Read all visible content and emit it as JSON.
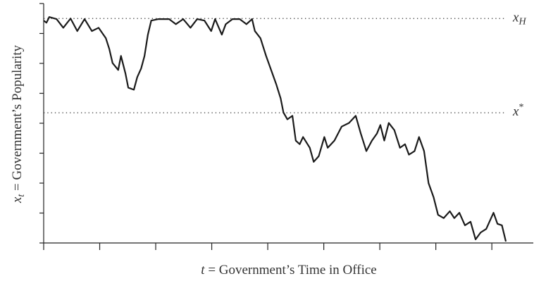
{
  "chart_data": {
    "type": "line",
    "ylabel": {
      "var": "x",
      "sub": "t",
      "text": " = Government’s Popularity"
    },
    "xlabel": {
      "var": "t",
      "text": " = Government’s Time in Office"
    },
    "xlim": [
      0,
      87.4
    ],
    "ylim": [
      0,
      80
    ],
    "xticks": [
      0,
      10,
      20,
      30,
      40,
      50,
      60,
      70,
      80
    ],
    "yticks": [
      0,
      10,
      20,
      30,
      40,
      50,
      60,
      70,
      80
    ],
    "reference_lines": [
      {
        "value": 75,
        "var": "x",
        "sub": "H"
      },
      {
        "value": 43.5,
        "var": "x",
        "sup": "*"
      }
    ],
    "series": [
      {
        "color": "#1a1a1a",
        "x": [
          0,
          0.5,
          1.0,
          2.3,
          3.5,
          4.8,
          6.0,
          7.3,
          8.6,
          9.8,
          11.1,
          11.7,
          12.3,
          13.3,
          13.8,
          14.6,
          15.1,
          16.1,
          16.7,
          17.4,
          18.0,
          18.6,
          19.2,
          20.5,
          22.4,
          23.6,
          24.9,
          26.2,
          27.4,
          28.7,
          29.9,
          30.6,
          31.8,
          32.5,
          33.7,
          35.0,
          36.2,
          37.2,
          37.7,
          38.7,
          39.7,
          40.6,
          41.5,
          42.3,
          42.8,
          43.5,
          44.4,
          45.0,
          45.7,
          46.3,
          47.5,
          48.2,
          49.1,
          50.1,
          50.7,
          51.9,
          53.2,
          54.5,
          55.7,
          56.6,
          57.6,
          58.6,
          59.5,
          60.1,
          60.8,
          61.6,
          62.6,
          63.6,
          64.5,
          65.2,
          66.2,
          67.0,
          67.9,
          68.7,
          69.6,
          70.4,
          71.4,
          72.5,
          73.3,
          74.2,
          75.2,
          76.2,
          77.1,
          78.0,
          79.0,
          80.3,
          81.0,
          81.8,
          82.5
        ],
        "values": [
          74.3,
          73.6,
          75.5,
          74.8,
          71.9,
          75,
          70.8,
          74.8,
          70.8,
          71.9,
          68.4,
          64.9,
          60.1,
          57.8,
          62.5,
          56.6,
          51.9,
          51.2,
          55.4,
          58.3,
          62.5,
          69.6,
          74.3,
          74.8,
          74.8,
          73.1,
          74.8,
          71.9,
          74.8,
          74.3,
          70.8,
          74.8,
          69.6,
          73.1,
          74.8,
          74.8,
          73.1,
          74.8,
          70.8,
          68.4,
          62.5,
          57.8,
          53.1,
          48.3,
          43.6,
          41.3,
          42.5,
          34.2,
          33,
          35.4,
          31.8,
          27.1,
          29,
          35.4,
          31.8,
          34.2,
          38.9,
          40.1,
          42.5,
          36.6,
          30.7,
          34.2,
          36.6,
          39.4,
          34.2,
          40.1,
          37.7,
          31.8,
          33,
          29.5,
          30.7,
          35.4,
          30.7,
          20.0,
          15.3,
          9.4,
          8.3,
          10.6,
          8.3,
          10.1,
          5.9,
          7.1,
          1.2,
          3.5,
          4.7,
          10.1,
          6.4,
          5.9,
          0.5
        ]
      }
    ]
  }
}
